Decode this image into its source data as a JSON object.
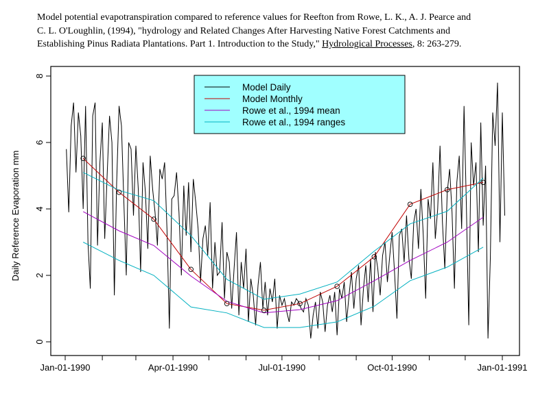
{
  "caption": {
    "line1": "Model potential evapotranspiration compared to reference values for Reefton from Rowe, L. K., A. J. Pearce and",
    "line2": "C. L. O'Loughlin, (1994), \"hydrology and Related Changes After Harvesting Native Forest Catchments and",
    "line3_pre": "Establishing Pinus Radiata Plantations.  Part 1.  Introduction to the Study,\" ",
    "line3_journal": "Hydrological Processes",
    "line3_post": ", 8: 263-279."
  },
  "chart_data": {
    "type": "line",
    "title": "Model potential evapotranspiration compared to reference values for Reefton",
    "xlabel": "",
    "ylabel": "Daily Reference Evaporation mm",
    "ylim": [
      0,
      8
    ],
    "xlim_days": [
      0,
      365
    ],
    "yticks": [
      "0",
      "2",
      "4",
      "6",
      "8"
    ],
    "ytick_values": [
      0,
      2,
      4,
      6,
      8
    ],
    "xtick_days": [
      0,
      31,
      59,
      90,
      120,
      151,
      181,
      212,
      243,
      273,
      304,
      334,
      365
    ],
    "xtick_labels": [
      {
        "day": 0,
        "label": "Jan-01-1990"
      },
      {
        "day": 90,
        "label": "Apr-01-1990"
      },
      {
        "day": 181,
        "label": "Jul-01-1990"
      },
      {
        "day": 273,
        "label": "Oct-01-1990"
      },
      {
        "day": 365,
        "label": "Jan-01-1991"
      }
    ],
    "grid": false,
    "legend_position": "top-center",
    "legend": [
      {
        "name": "Model Daily",
        "color": "#000000"
      },
      {
        "name": "Model Monthly",
        "color": "#C00000"
      },
      {
        "name": "Rowe et al., 1994 mean",
        "color": "#A000C0"
      },
      {
        "name": "Rowe et al., 1994 ranges",
        "color": "#00B0C0"
      }
    ],
    "legend_bg": "#A0FFFF",
    "monthly_days": [
      15,
      45,
      74,
      105,
      135,
      166,
      196,
      227,
      258,
      288,
      319,
      349
    ],
    "series": [
      {
        "name": "Model Daily",
        "color": "#000000",
        "x_start_day": 1,
        "x_step_days": 2,
        "values": [
          5.8,
          3.9,
          6.5,
          7.2,
          5.1,
          6.9,
          6.2,
          4.0,
          7.1,
          3.0,
          1.6,
          6.8,
          7.2,
          2.9,
          5.4,
          6.6,
          3.1,
          5.0,
          6.8,
          6.0,
          1.4,
          4.8,
          7.1,
          6.5,
          4.2,
          2.0,
          6.0,
          5.8,
          3.8,
          5.9,
          4.6,
          2.1,
          5.4,
          4.5,
          2.8,
          5.6,
          4.6,
          3.9,
          2.9,
          5.2,
          4.9,
          5.4,
          3.4,
          0.4,
          4.3,
          4.4,
          5.1,
          3.9,
          2.0,
          4.7,
          3.2,
          4.8,
          2.7,
          4.9,
          4.2,
          3.4,
          1.8,
          3.1,
          3.5,
          2.6,
          4.2,
          1.6,
          3.0,
          2.0,
          2.1,
          3.6,
          1.3,
          2.7,
          2.4,
          1.0,
          2.2,
          3.3,
          0.8,
          2.4,
          1.6,
          2.8,
          0.6,
          1.9,
          1.4,
          0.5,
          1.7,
          2.4,
          1.0,
          1.8,
          0.8,
          1.6,
          1.2,
          1.9,
          0.4,
          1.4,
          1.1,
          1.3,
          0.9,
          0.6,
          1.2,
          1.1,
          1.3,
          1.2,
          1.0,
          0.9,
          1.3,
          1.1,
          0.1,
          0.8,
          1.2,
          0.4,
          1.5,
          1.2,
          0.3,
          1.1,
          1.4,
          0.9,
          1.5,
          0.2,
          1.6,
          1.3,
          1.8,
          0.6,
          1.4,
          2.1,
          1.0,
          1.9,
          2.3,
          0.5,
          1.6,
          2.3,
          1.2,
          2.5,
          0.9,
          2.7,
          2.2,
          1.4,
          2.6,
          3.0,
          1.8,
          2.6,
          3.3,
          2.1,
          0.7,
          3.2,
          3.4,
          2.4,
          3.8,
          2.5,
          1.9,
          3.6,
          4.0,
          2.8,
          4.6,
          3.2,
          1.3,
          4.3,
          3.7,
          5.4,
          3.1,
          4.0,
          5.9,
          3.6,
          2.2,
          4.5,
          5.2,
          3.9,
          1.6,
          4.8,
          5.6,
          3.4,
          7.1,
          4.1,
          0.5,
          6.0,
          4.7,
          5.4,
          2.7,
          6.6,
          3.5,
          5.3,
          0.1,
          2.5,
          6.9,
          5.9,
          7.8,
          3.0,
          6.9,
          3.8
        ]
      },
      {
        "name": "Model Monthly",
        "color": "#C00000",
        "markers": "open-circle",
        "values": [
          5.52,
          4.5,
          3.69,
          2.18,
          1.15,
          0.95,
          1.15,
          1.67,
          2.56,
          4.14,
          4.58,
          4.8
        ]
      },
      {
        "name": "Rowe et al., 1994 mean",
        "color": "#A000C0",
        "values": [
          3.92,
          3.34,
          2.9,
          1.98,
          1.22,
          0.87,
          0.97,
          1.24,
          1.84,
          2.45,
          3.0,
          3.75
        ]
      },
      {
        "name": "Rowe et al., 1994 ranges (upper)",
        "color": "#00B0C0",
        "values": [
          5.1,
          4.56,
          4.25,
          3.2,
          1.88,
          1.28,
          1.44,
          1.8,
          2.73,
          3.55,
          3.93,
          4.93
        ]
      },
      {
        "name": "Rowe et al., 1994 ranges (lower)",
        "color": "#00B0C0",
        "values": [
          3.0,
          2.45,
          2.0,
          1.05,
          0.87,
          0.43,
          0.43,
          0.6,
          1.07,
          1.84,
          2.25,
          2.85
        ]
      }
    ]
  }
}
